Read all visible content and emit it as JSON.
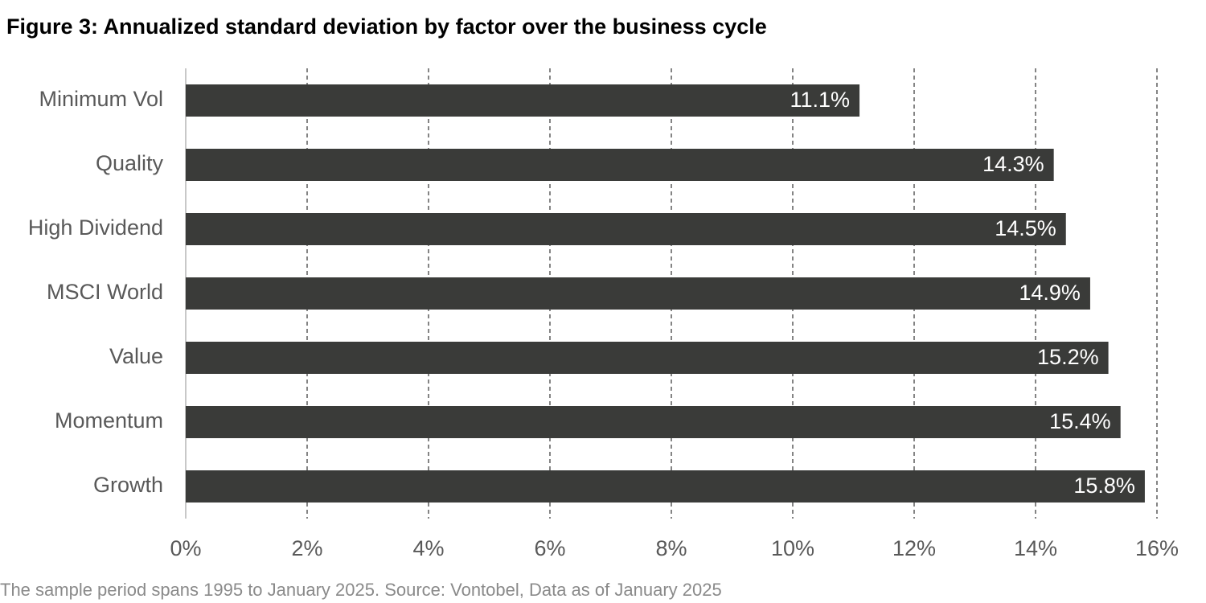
{
  "chart_data": {
    "type": "hbar",
    "title": "Figure 3: Annualized standard deviation by factor over the business cycle",
    "footnote": "The sample period spans 1995 to January 2025. Source: Vontobel, Data as of January 2025",
    "categories": [
      "Minimum Vol",
      "Quality",
      "High Dividend",
      "MSCI World",
      "Value",
      "Momentum",
      "Growth"
    ],
    "values": [
      11.1,
      14.3,
      14.5,
      14.9,
      15.2,
      15.4,
      15.8
    ],
    "value_labels": [
      "11.1%",
      "14.3%",
      "14.5%",
      "14.9%",
      "15.2%",
      "15.4%",
      "15.8%"
    ],
    "color": "#3a3b39",
    "xlim": [
      0,
      16
    ],
    "xticks": [
      {
        "value": 0,
        "label": "0%"
      },
      {
        "value": 2,
        "label": "2%"
      },
      {
        "value": 4,
        "label": "4%"
      },
      {
        "value": 6,
        "label": "6%"
      },
      {
        "value": 8,
        "label": "8%"
      },
      {
        "value": 10,
        "label": "10%"
      },
      {
        "value": 12,
        "label": "12%"
      },
      {
        "value": 14,
        "label": "14%"
      },
      {
        "value": 16,
        "label": "16%"
      }
    ],
    "grid": true
  }
}
